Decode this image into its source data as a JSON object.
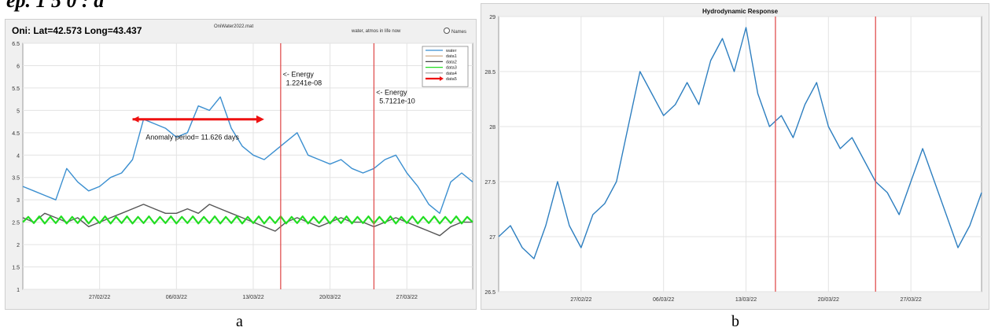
{
  "page": {
    "top_text": "ep. 1 5 0 :  a"
  },
  "captions": {
    "a": "a",
    "b": "b"
  },
  "chart_data": [
    {
      "type": "line",
      "panel": "a",
      "title": "Oni: Lat=42.573 Long=43.437",
      "subtitle": "OniWater2022.mat",
      "note": "water, atmos in life now",
      "names_label": "Names",
      "xlabel": "",
      "ylabel": "",
      "ylim": [
        1.0,
        6.5
      ],
      "yticks": [
        1,
        1.5,
        2,
        2.5,
        3,
        3.5,
        4,
        4.5,
        5,
        5.5,
        6,
        6.5
      ],
      "xticks": [
        "27/02/22",
        "06/03/22",
        "13/03/22",
        "20/03/22",
        "27/03/22"
      ],
      "xtick_days": [
        7,
        14,
        21,
        28,
        35
      ],
      "xlim_days": [
        0,
        41
      ],
      "grid": true,
      "legend_position": "top-right",
      "legend": [
        {
          "name": "water",
          "color": "#3b8fd0"
        },
        {
          "name": "data1",
          "color": "#c8a07a"
        },
        {
          "name": "data2",
          "color": "#444444"
        },
        {
          "name": "data3",
          "color": "#22dd22"
        },
        {
          "name": "data4",
          "color": "#9a9a9a"
        },
        {
          "name": "data5",
          "color": "#ee1111"
        }
      ],
      "series": [
        {
          "name": "water",
          "color": "#3b8fd0",
          "x": [
            0,
            1,
            2,
            3,
            4,
            5,
            6,
            7,
            8,
            9,
            10,
            11,
            12,
            13,
            14,
            15,
            16,
            17,
            18,
            19,
            20,
            21,
            22,
            23,
            24,
            25,
            26,
            27,
            28,
            29,
            30,
            31,
            32,
            33,
            34,
            35,
            36,
            37,
            38,
            39,
            40,
            41
          ],
          "y": [
            3.3,
            3.2,
            3.1,
            3.0,
            3.7,
            3.4,
            3.2,
            3.3,
            3.5,
            3.6,
            3.9,
            4.8,
            4.7,
            4.6,
            4.4,
            4.5,
            5.1,
            5.0,
            5.3,
            4.6,
            4.2,
            4.0,
            3.9,
            4.1,
            4.3,
            4.5,
            4.0,
            3.9,
            3.8,
            3.9,
            3.7,
            3.6,
            3.7,
            3.9,
            4.0,
            3.6,
            3.3,
            2.9,
            2.7,
            3.4,
            3.6,
            3.4
          ]
        },
        {
          "name": "data2",
          "color": "#555555",
          "x": [
            0,
            1,
            2,
            3,
            4,
            5,
            6,
            7,
            8,
            9,
            10,
            11,
            12,
            13,
            14,
            15,
            16,
            17,
            18,
            19,
            20,
            21,
            22,
            23,
            24,
            25,
            26,
            27,
            28,
            29,
            30,
            31,
            32,
            33,
            34,
            35,
            36,
            37,
            38,
            39,
            40,
            41
          ],
          "y": [
            2.6,
            2.5,
            2.7,
            2.6,
            2.5,
            2.6,
            2.4,
            2.5,
            2.6,
            2.7,
            2.8,
            2.9,
            2.8,
            2.7,
            2.7,
            2.8,
            2.7,
            2.9,
            2.8,
            2.7,
            2.6,
            2.5,
            2.4,
            2.3,
            2.5,
            2.6,
            2.5,
            2.4,
            2.5,
            2.6,
            2.5,
            2.5,
            2.4,
            2.5,
            2.6,
            2.5,
            2.4,
            2.3,
            2.2,
            2.4,
            2.5,
            2.5
          ]
        },
        {
          "name": "data3",
          "color": "#22dd22",
          "x": [
            0,
            0.5,
            1,
            1.5,
            2,
            2.5,
            3,
            3.5,
            4,
            4.5,
            5,
            5.5,
            6,
            6.5,
            7,
            7.5,
            8,
            8.5,
            9,
            9.5,
            10,
            10.5,
            11,
            11.5,
            12,
            12.5,
            13,
            13.5,
            14,
            14.5,
            15,
            15.5,
            16,
            16.5,
            17,
            17.5,
            18,
            18.5,
            19,
            19.5,
            20,
            20.5,
            21,
            21.5,
            22,
            22.5,
            23,
            23.5,
            24,
            24.5,
            25,
            25.5,
            26,
            26.5,
            27,
            27.5,
            28,
            28.5,
            29,
            29.5,
            30,
            30.5,
            31,
            31.5,
            32,
            32.5,
            33,
            33.5,
            34,
            34.5,
            35,
            35.5,
            36,
            36.5,
            37,
            37.5,
            38,
            38.5,
            39,
            39.5,
            40,
            40.5,
            41
          ],
          "y": [
            2.5,
            2.62,
            2.48,
            2.63,
            2.47,
            2.62,
            2.48,
            2.63,
            2.47,
            2.62,
            2.48,
            2.63,
            2.47,
            2.62,
            2.48,
            2.63,
            2.47,
            2.62,
            2.48,
            2.63,
            2.47,
            2.62,
            2.48,
            2.63,
            2.47,
            2.62,
            2.48,
            2.63,
            2.47,
            2.62,
            2.48,
            2.63,
            2.47,
            2.62,
            2.48,
            2.63,
            2.47,
            2.62,
            2.48,
            2.63,
            2.47,
            2.62,
            2.48,
            2.63,
            2.47,
            2.62,
            2.48,
            2.63,
            2.47,
            2.62,
            2.48,
            2.63,
            2.47,
            2.62,
            2.48,
            2.63,
            2.47,
            2.62,
            2.48,
            2.63,
            2.47,
            2.62,
            2.48,
            2.63,
            2.47,
            2.62,
            2.48,
            2.63,
            2.47,
            2.62,
            2.48,
            2.63,
            2.47,
            2.62,
            2.48,
            2.63,
            2.47,
            2.62,
            2.48,
            2.63,
            2.47,
            2.62,
            2.5
          ]
        }
      ],
      "vlines": [
        {
          "x": 23.5,
          "color": "#e05050"
        },
        {
          "x": 32,
          "color": "#e05050"
        }
      ],
      "arrow": {
        "x_start": 10,
        "x_end": 22,
        "y": 4.8,
        "color": "#ee1111"
      },
      "annotations": [
        {
          "line1": "<- Energy",
          "line2": "1.2241e-08",
          "x": 23.7,
          "y": 5.75
        },
        {
          "line1": "<- Energy",
          "line2": "5.7121e-10",
          "x": 32.2,
          "y": 5.35
        },
        {
          "line1": "Anomaly period= 11.626 days",
          "line2": "",
          "x": 11.2,
          "y": 4.35
        }
      ]
    },
    {
      "type": "line",
      "panel": "b",
      "title": "Hydrodynamic Response",
      "xlabel": "",
      "ylabel": "",
      "ylim": [
        26.5,
        29
      ],
      "yticks": [
        26.5,
        27,
        27.5,
        28,
        28.5,
        29
      ],
      "xticks": [
        "27/02/22",
        "06/03/22",
        "13/03/22",
        "20/03/22",
        "27/03/22"
      ],
      "xtick_days": [
        7,
        14,
        21,
        28,
        35
      ],
      "xlim_days": [
        0,
        41
      ],
      "grid": true,
      "series": [
        {
          "name": "",
          "color": "#2e7fc0",
          "x": [
            0,
            1,
            2,
            3,
            4,
            5,
            6,
            7,
            8,
            9,
            10,
            11,
            12,
            13,
            14,
            15,
            16,
            17,
            18,
            19,
            20,
            21,
            22,
            23,
            24,
            25,
            26,
            27,
            28,
            29,
            30,
            31,
            32,
            33,
            34,
            35,
            36,
            37,
            38,
            39,
            40,
            41
          ],
          "y": [
            27.0,
            27.1,
            26.9,
            26.8,
            27.1,
            27.5,
            27.1,
            26.9,
            27.2,
            27.3,
            27.5,
            28.0,
            28.5,
            28.3,
            28.1,
            28.2,
            28.4,
            28.2,
            28.6,
            28.8,
            28.5,
            28.9,
            28.3,
            28.0,
            28.1,
            27.9,
            28.2,
            28.4,
            28.0,
            27.8,
            27.9,
            27.7,
            27.5,
            27.4,
            27.2,
            27.5,
            27.8,
            27.5,
            27.2,
            26.9,
            27.1,
            27.4
          ]
        }
      ],
      "vlines": [
        {
          "x": 23.5,
          "color": "#e05050"
        },
        {
          "x": 32,
          "color": "#e05050"
        }
      ]
    }
  ]
}
